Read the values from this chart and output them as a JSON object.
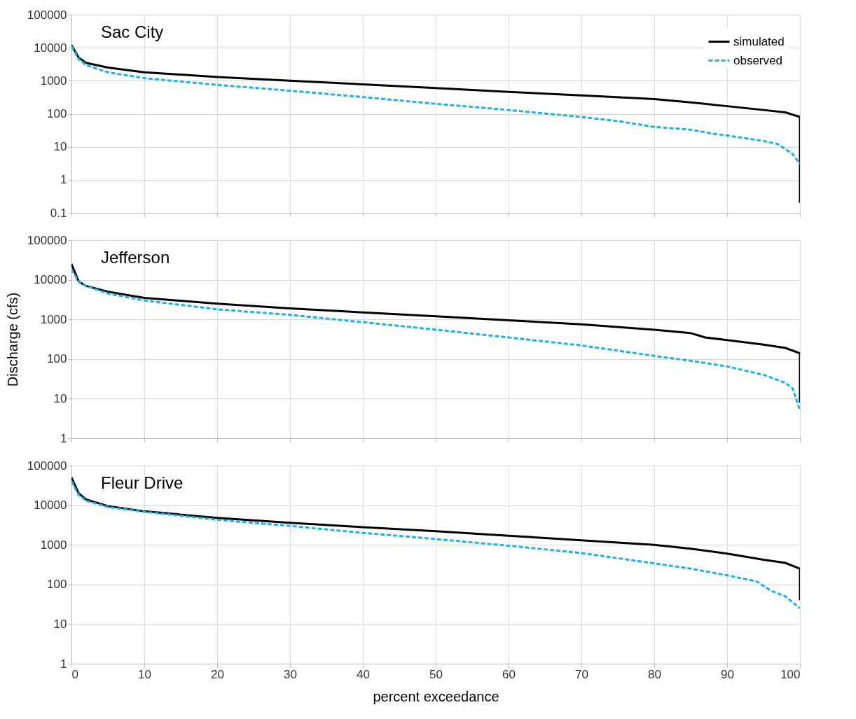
{
  "chart_data": [
    {
      "type": "line",
      "title": "Sac City",
      "log": "y",
      "grid": true,
      "legend": "top right",
      "tick_labels": "y",
      "xlim": [
        0,
        100
      ],
      "xticks": [
        0,
        10,
        20,
        30,
        40,
        50,
        60,
        70,
        80,
        90,
        100
      ],
      "ylim": [
        0.1,
        100000
      ],
      "yticks": [
        0.1,
        1,
        10,
        100,
        1000,
        10000,
        100000
      ],
      "series": [
        {
          "name": "simulated",
          "color": "#000000",
          "line_style": "solid",
          "x": [
            0,
            1,
            2,
            5,
            10,
            20,
            30,
            40,
            50,
            60,
            70,
            80,
            85,
            90,
            95,
            98,
            100,
            100
          ],
          "values": [
            12000,
            5000,
            3500,
            2500,
            1800,
            1300,
            1000,
            780,
            600,
            460,
            360,
            280,
            220,
            170,
            130,
            110,
            80,
            0.2
          ]
        },
        {
          "name": "observed",
          "color": "#1fb0e6",
          "line_style": "dashed",
          "x": [
            0,
            1,
            2,
            5,
            10,
            20,
            30,
            40,
            50,
            60,
            70,
            75,
            80,
            85,
            88,
            90,
            95,
            97,
            99,
            100
          ],
          "values": [
            11000,
            4500,
            3000,
            1800,
            1200,
            750,
            500,
            320,
            200,
            130,
            80,
            60,
            40,
            33,
            25,
            22,
            15,
            12,
            6,
            3
          ]
        }
      ]
    },
    {
      "type": "line",
      "title": "Jefferson",
      "ylabel": "Discharge (cfs)",
      "log": "y",
      "grid": true,
      "tick_labels": "y",
      "xlim": [
        0,
        100
      ],
      "xticks": [
        0,
        10,
        20,
        30,
        40,
        50,
        60,
        70,
        80,
        90,
        100
      ],
      "ylim": [
        1,
        100000
      ],
      "yticks": [
        1,
        10,
        100,
        1000,
        10000,
        100000
      ],
      "series": [
        {
          "color": "#000000",
          "line_style": "solid",
          "x": [
            0,
            1,
            2,
            5,
            10,
            20,
            30,
            40,
            50,
            60,
            70,
            80,
            85,
            87,
            90,
            95,
            98,
            100,
            100
          ],
          "values": [
            25000,
            9000,
            7000,
            5000,
            3500,
            2500,
            1900,
            1500,
            1200,
            950,
            750,
            550,
            450,
            350,
            300,
            230,
            190,
            140,
            8
          ]
        },
        {
          "color": "#1fb0e6",
          "line_style": "dashed",
          "x": [
            0,
            1,
            2,
            5,
            10,
            20,
            30,
            40,
            50,
            60,
            70,
            80,
            85,
            90,
            95,
            98,
            99,
            100
          ],
          "values": [
            18000,
            9000,
            7000,
            4500,
            3000,
            1800,
            1300,
            850,
            550,
            350,
            220,
            120,
            90,
            65,
            40,
            25,
            18,
            5
          ]
        }
      ]
    },
    {
      "type": "line",
      "title": "Fleur Drive",
      "xlabel": "percent exceedance",
      "log": "y",
      "grid": true,
      "xlim": [
        0,
        100
      ],
      "xticks": [
        0,
        10,
        20,
        30,
        40,
        50,
        60,
        70,
        80,
        90,
        100
      ],
      "ylim": [
        1,
        100000
      ],
      "yticks": [
        1,
        10,
        100,
        1000,
        10000,
        100000
      ],
      "series": [
        {
          "color": "#000000",
          "line_style": "solid",
          "x": [
            0,
            1,
            2,
            5,
            10,
            20,
            30,
            40,
            50,
            60,
            70,
            80,
            85,
            90,
            95,
            98,
            100,
            100
          ],
          "values": [
            50000,
            20000,
            14000,
            9500,
            7000,
            4800,
            3600,
            2800,
            2200,
            1700,
            1300,
            1000,
            800,
            600,
            420,
            350,
            250,
            40
          ]
        },
        {
          "color": "#1fb0e6",
          "line_style": "dashed",
          "x": [
            0,
            1,
            2,
            5,
            10,
            20,
            30,
            40,
            50,
            60,
            70,
            80,
            85,
            90,
            94,
            96,
            98,
            100
          ],
          "values": [
            40000,
            18000,
            13000,
            9000,
            6800,
            4300,
            3000,
            2000,
            1400,
            950,
            620,
            340,
            250,
            170,
            120,
            70,
            50,
            25
          ]
        }
      ]
    }
  ]
}
